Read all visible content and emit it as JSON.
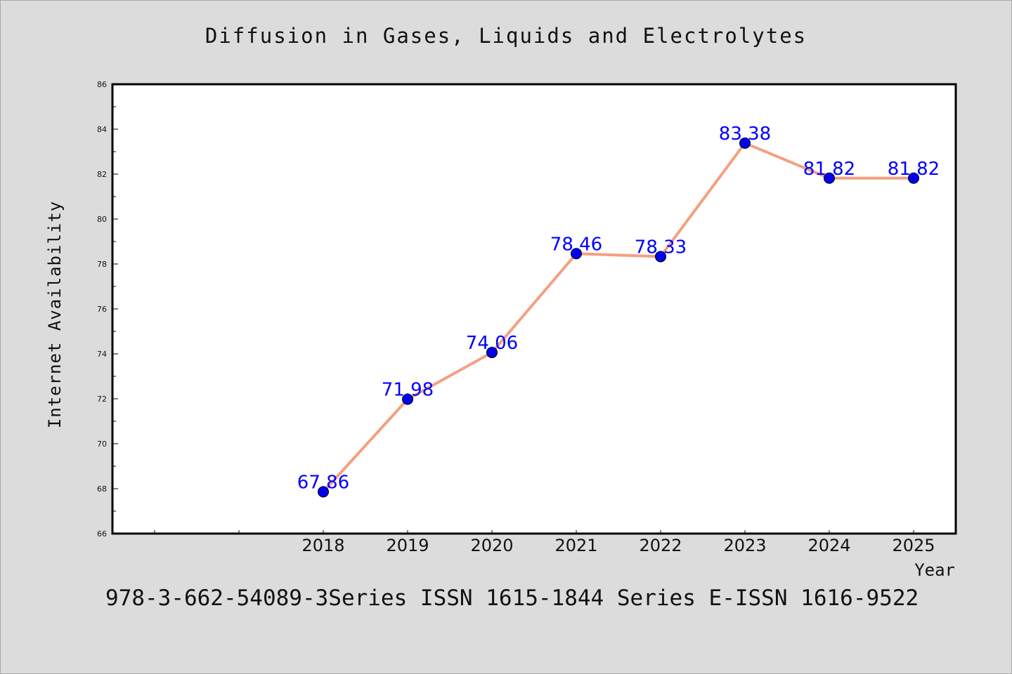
{
  "chart_data": {
    "type": "line",
    "title": "Diffusion in Gases, Liquids and Electrolytes",
    "xlabel": "Year",
    "ylabel": "Internet Availability",
    "footer": "978-3-662-54089-3Series ISSN 1615-1844 Series E-ISSN 1616-9522",
    "categories": [
      "2018",
      "2019",
      "2020",
      "2021",
      "2022",
      "2023",
      "2024",
      "2025"
    ],
    "series": [
      {
        "values": [
          67.86,
          71.98,
          74.06,
          78.46,
          78.33,
          83.38,
          81.82,
          81.82
        ]
      }
    ],
    "ylim": [
      66,
      86
    ],
    "yticks": [
      66,
      68,
      70,
      72,
      74,
      76,
      78,
      80,
      82,
      84,
      86
    ],
    "grid": false,
    "colors": {
      "line": "#f4a080",
      "marker": "#0000ee",
      "label": "#0000ff"
    }
  }
}
